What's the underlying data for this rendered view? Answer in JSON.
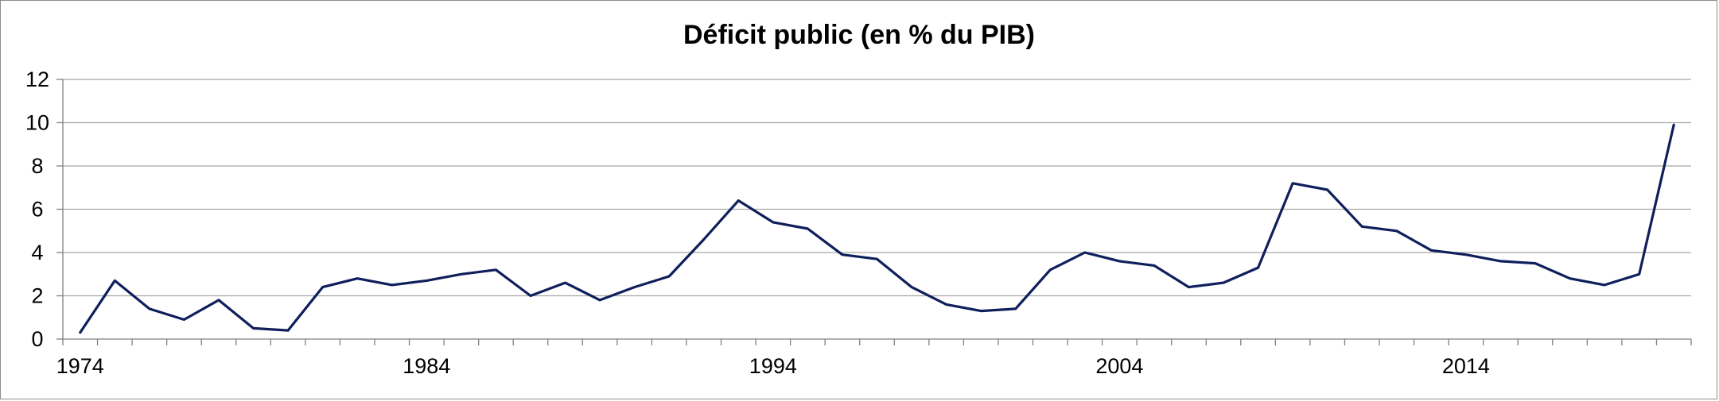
{
  "chart_data": {
    "type": "line",
    "title": "Déficit public (en % du PIB)",
    "xlabel": "",
    "ylabel": "",
    "x": [
      1974,
      1975,
      1976,
      1977,
      1978,
      1979,
      1980,
      1981,
      1982,
      1983,
      1984,
      1985,
      1986,
      1987,
      1988,
      1989,
      1990,
      1991,
      1992,
      1993,
      1994,
      1995,
      1996,
      1997,
      1998,
      1999,
      2000,
      2001,
      2002,
      2003,
      2004,
      2005,
      2006,
      2007,
      2008,
      2009,
      2010,
      2011,
      2012,
      2013,
      2014,
      2015,
      2016,
      2017,
      2018,
      2019,
      2020
    ],
    "series": [
      {
        "name": "",
        "values": [
          0.3,
          2.7,
          1.4,
          0.9,
          1.8,
          0.5,
          0.4,
          2.4,
          2.8,
          2.5,
          2.7,
          3.0,
          3.2,
          2.0,
          2.6,
          1.8,
          2.4,
          2.9,
          4.6,
          6.4,
          5.4,
          5.1,
          3.9,
          3.7,
          2.4,
          1.6,
          1.3,
          1.4,
          3.2,
          4.0,
          3.6,
          3.4,
          2.4,
          2.6,
          3.3,
          7.2,
          6.9,
          5.2,
          5.0,
          4.1,
          3.9,
          3.6,
          3.5,
          2.8,
          2.5,
          3.0,
          9.9
        ]
      }
    ],
    "ylim": [
      0,
      12
    ],
    "yticks": [
      0,
      2,
      4,
      6,
      8,
      10,
      12
    ],
    "xticks": [
      1974,
      1984,
      1994,
      2004,
      2014
    ],
    "grid": true,
    "legend": "none",
    "colors": {
      "line": "#0f1f5c",
      "grid": "#a6a6a6",
      "axis": "#808080",
      "border": "#8c8c8c"
    }
  }
}
